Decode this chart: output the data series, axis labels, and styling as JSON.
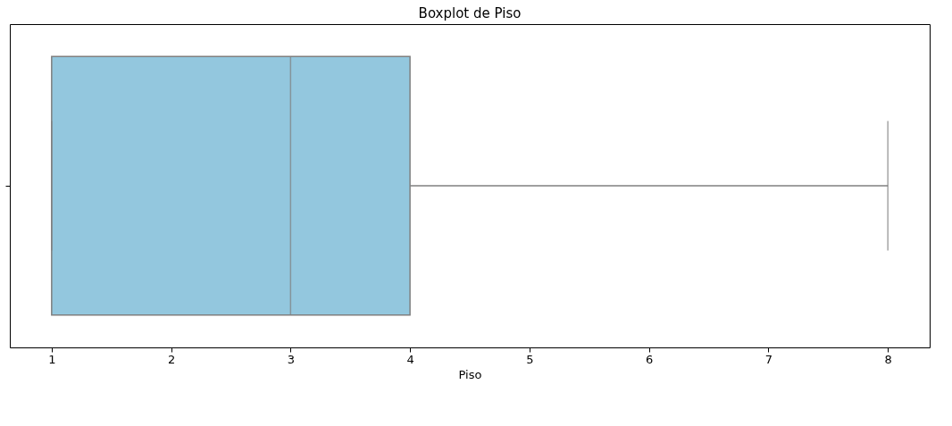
{
  "chart_data": {
    "type": "box",
    "title": "Boxplot de Piso",
    "xlabel": "Piso",
    "orientation": "horizontal",
    "categories": [
      null
    ],
    "boxes": [
      {
        "low": 1,
        "q1": 1,
        "median": 3,
        "q3": 4,
        "high": 8
      }
    ],
    "color": "#93c7de",
    "xlim": [
      0.65,
      8.35
    ],
    "xticks": [
      1,
      2,
      3,
      4,
      5,
      6,
      7,
      8
    ],
    "grid": false
  }
}
